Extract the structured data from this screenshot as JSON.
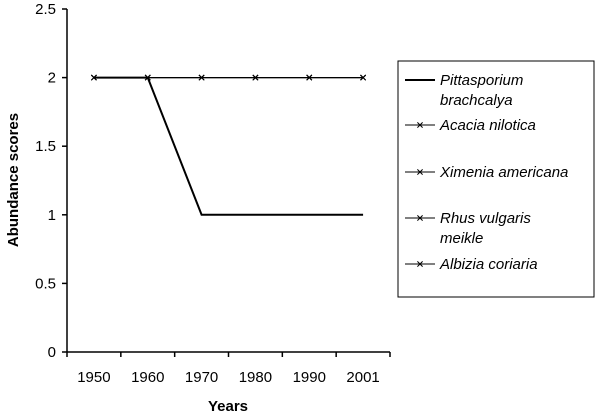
{
  "chart_data": {
    "type": "line",
    "xlabel": "Years",
    "ylabel": "Abundance scores",
    "categories": [
      "1950",
      "1960",
      "1970",
      "1980",
      "1990",
      "2001"
    ],
    "ylim": [
      0,
      2.5
    ],
    "yticks": [
      "0",
      "0.5",
      "1",
      "1.5",
      "2",
      "2.5"
    ],
    "grid": false,
    "legend_position": "right",
    "series": [
      {
        "name_lines": [
          "Pittasporium",
          "brachcalya"
        ],
        "values": [
          2,
          2,
          1,
          1,
          1,
          1
        ],
        "color": "#000000",
        "marker": "none"
      },
      {
        "name_lines": [
          "Acacia nilotica"
        ],
        "values": [
          2,
          2,
          2,
          2,
          2,
          2
        ],
        "color": "#000000",
        "marker": "x"
      },
      {
        "name_lines": [
          "Ximenia americana"
        ],
        "values": [
          2,
          2,
          2,
          2,
          2,
          2
        ],
        "color": "#000000",
        "marker": "x"
      },
      {
        "name_lines": [
          "Rhus vulgaris",
          "meikle"
        ],
        "values": [
          2,
          2,
          2,
          2,
          2,
          2
        ],
        "color": "#000000",
        "marker": "x"
      },
      {
        "name_lines": [
          "Albizia coriaria"
        ],
        "values": [
          2,
          2,
          2,
          2,
          2,
          2
        ],
        "color": "#000000",
        "marker": "x"
      }
    ]
  }
}
